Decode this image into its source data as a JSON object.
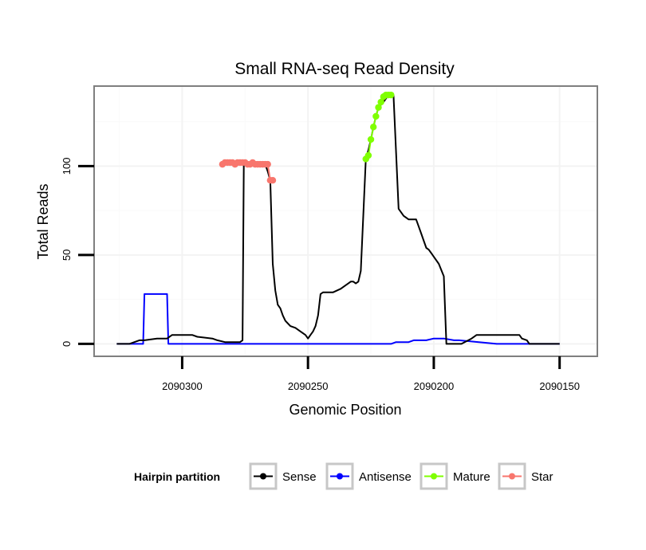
{
  "chart_data": {
    "type": "line",
    "title": "Small RNA-seq Read Density",
    "xlabel": "Genomic Position",
    "ylabel": "Total Reads",
    "xlim": [
      2090335,
      2090135
    ],
    "ylim": [
      -7,
      145
    ],
    "x_ticks": [
      2090300,
      2090250,
      2090200,
      2090150
    ],
    "x_tick_labels": [
      "2090300",
      "2090250",
      "2090200",
      "2090150"
    ],
    "y_ticks": [
      0,
      50,
      100
    ],
    "y_tick_labels": [
      "0",
      "50",
      "100"
    ],
    "legend": {
      "title": "Hairpin partition",
      "position": "bottom",
      "entries": [
        {
          "name": "Sense",
          "color": "#000000"
        },
        {
          "name": "Antisense",
          "color": "#0000ff"
        },
        {
          "name": "Mature",
          "color": "#7fff00"
        },
        {
          "name": "Star",
          "color": "#f8766d"
        }
      ]
    },
    "series": [
      {
        "name": "Sense",
        "color": "#000000",
        "x": [
          2090326,
          2090321,
          2090319,
          2090317,
          2090315,
          2090310,
          2090306,
          2090304,
          2090296,
          2090294,
          2090288,
          2090286,
          2090283,
          2090277,
          2090276,
          2090275.5,
          2090272,
          2090270,
          2090268,
          2090267,
          2090266,
          2090265,
          2090264,
          2090263,
          2090262,
          2090261,
          2090260,
          2090259,
          2090257,
          2090255,
          2090253,
          2090251,
          2090250,
          2090249,
          2090248,
          2090247,
          2090246,
          2090245,
          2090244,
          2090240,
          2090237,
          2090235,
          2090234,
          2090233,
          2090232,
          2090231,
          2090230,
          2090229,
          2090227,
          2090226,
          2090225,
          2090224,
          2090223,
          2090222,
          2090220,
          2090218,
          2090216,
          2090214,
          2090212,
          2090210,
          2090208,
          2090207,
          2090206,
          2090205,
          2090204,
          2090203,
          2090202,
          2090201,
          2090200,
          2090198,
          2090196,
          2090195,
          2090194,
          2090193,
          2090192.5,
          2090189,
          2090185,
          2090183,
          2090182,
          2090180,
          2090166,
          2090165,
          2090163,
          2090162,
          2090158,
          2090156,
          2090150
        ],
        "y": [
          0,
          0,
          1,
          2,
          2,
          3,
          3,
          5,
          5,
          4,
          3,
          2,
          1,
          1,
          2,
          101,
          102,
          102,
          101,
          101,
          97,
          92,
          45,
          30,
          22,
          20,
          16,
          13,
          10,
          9,
          7,
          5,
          3,
          5,
          7,
          10,
          16,
          28,
          29,
          29,
          31,
          33,
          34,
          35,
          35,
          34,
          35,
          41,
          104,
          109,
          115,
          122,
          128,
          133,
          136,
          140,
          140,
          76,
          72,
          70,
          70,
          70,
          66,
          62,
          58,
          54,
          53,
          51,
          49,
          45,
          38,
          0,
          0,
          0,
          0,
          0,
          3,
          5,
          5,
          5,
          5,
          3,
          2,
          0,
          0,
          0,
          0
        ]
      },
      {
        "name": "Antisense",
        "color": "#0000ff",
        "x": [
          2090326,
          2090315.5,
          2090315,
          2090306,
          2090305.5,
          2090245,
          2090217,
          2090215,
          2090210,
          2090208,
          2090203,
          2090200,
          2090196,
          2090192,
          2090190,
          2090175,
          2090165,
          2090160,
          2090150
        ],
        "y": [
          0,
          0,
          28,
          28,
          0,
          0,
          0,
          1,
          1,
          2,
          2,
          3,
          3,
          2,
          2,
          0,
          0,
          0,
          0
        ]
      },
      {
        "name": "Mature",
        "color": "#7fff00",
        "x": [
          2090227,
          2090226,
          2090225,
          2090224,
          2090223,
          2090222,
          2090221,
          2090220,
          2090219,
          2090218,
          2090217
        ],
        "y": [
          104,
          106,
          115,
          122,
          128,
          133,
          136,
          139,
          140,
          140,
          140
        ]
      },
      {
        "name": "Star",
        "color": "#f8766d",
        "x": [
          2090284,
          2090283,
          2090282,
          2090281,
          2090280,
          2090279,
          2090278,
          2090277,
          2090276,
          2090275,
          2090274,
          2090273,
          2090272,
          2090271,
          2090270,
          2090269,
          2090268,
          2090267,
          2090266,
          2090265,
          2090264
        ],
        "y": [
          101,
          102,
          102,
          102,
          102,
          101,
          102,
          102,
          102,
          102,
          101,
          101,
          102,
          101,
          101,
          101,
          101,
          101,
          101,
          92,
          92
        ]
      }
    ]
  }
}
